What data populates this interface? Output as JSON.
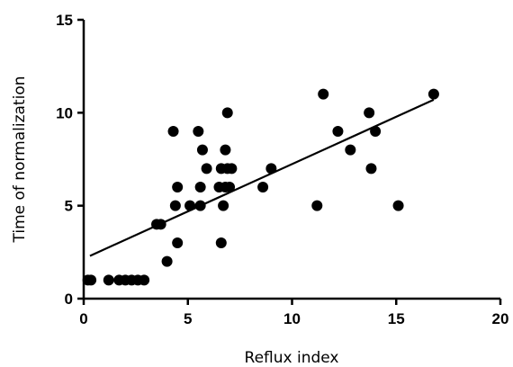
{
  "chart_data": {
    "type": "scatter",
    "title": "",
    "xlabel": "Reflux index",
    "ylabel": "Time of normalization",
    "xlim": [
      0,
      20
    ],
    "ylim": [
      0,
      15
    ],
    "x_ticks": [
      0,
      5,
      10,
      15,
      20
    ],
    "y_ticks": [
      0,
      5,
      10,
      15
    ],
    "x_tick_labels": [
      "0",
      "5",
      "10",
      "15",
      "20"
    ],
    "y_tick_labels": [
      "0",
      "5",
      "10",
      "15"
    ],
    "grid": false,
    "legend": "none",
    "marker_color": "#000000",
    "points": [
      {
        "x": 0.2,
        "y": 1
      },
      {
        "x": 0.35,
        "y": 1
      },
      {
        "x": 1.2,
        "y": 1
      },
      {
        "x": 1.7,
        "y": 1
      },
      {
        "x": 2.0,
        "y": 1
      },
      {
        "x": 2.3,
        "y": 1
      },
      {
        "x": 2.6,
        "y": 1
      },
      {
        "x": 2.9,
        "y": 1
      },
      {
        "x": 3.5,
        "y": 4
      },
      {
        "x": 3.7,
        "y": 4
      },
      {
        "x": 4.0,
        "y": 2
      },
      {
        "x": 4.3,
        "y": 9
      },
      {
        "x": 4.4,
        "y": 5
      },
      {
        "x": 4.5,
        "y": 6
      },
      {
        "x": 4.5,
        "y": 3
      },
      {
        "x": 5.1,
        "y": 5
      },
      {
        "x": 5.5,
        "y": 9
      },
      {
        "x": 5.6,
        "y": 6
      },
      {
        "x": 5.6,
        "y": 5
      },
      {
        "x": 5.7,
        "y": 8
      },
      {
        "x": 5.9,
        "y": 7
      },
      {
        "x": 6.5,
        "y": 6
      },
      {
        "x": 6.6,
        "y": 7
      },
      {
        "x": 6.6,
        "y": 3
      },
      {
        "x": 6.7,
        "y": 5
      },
      {
        "x": 6.8,
        "y": 6
      },
      {
        "x": 6.8,
        "y": 8
      },
      {
        "x": 6.9,
        "y": 10
      },
      {
        "x": 6.9,
        "y": 7
      },
      {
        "x": 7.1,
        "y": 7
      },
      {
        "x": 7.0,
        "y": 6
      },
      {
        "x": 8.6,
        "y": 6
      },
      {
        "x": 9.0,
        "y": 7
      },
      {
        "x": 11.2,
        "y": 5
      },
      {
        "x": 11.5,
        "y": 11
      },
      {
        "x": 12.2,
        "y": 9
      },
      {
        "x": 12.8,
        "y": 8
      },
      {
        "x": 13.7,
        "y": 10
      },
      {
        "x": 13.8,
        "y": 7
      },
      {
        "x": 14.0,
        "y": 9
      },
      {
        "x": 15.1,
        "y": 5
      },
      {
        "x": 16.8,
        "y": 11
      }
    ],
    "trendline": {
      "x": [
        0.3,
        16.8
      ],
      "y": [
        2.3,
        10.7
      ]
    }
  }
}
